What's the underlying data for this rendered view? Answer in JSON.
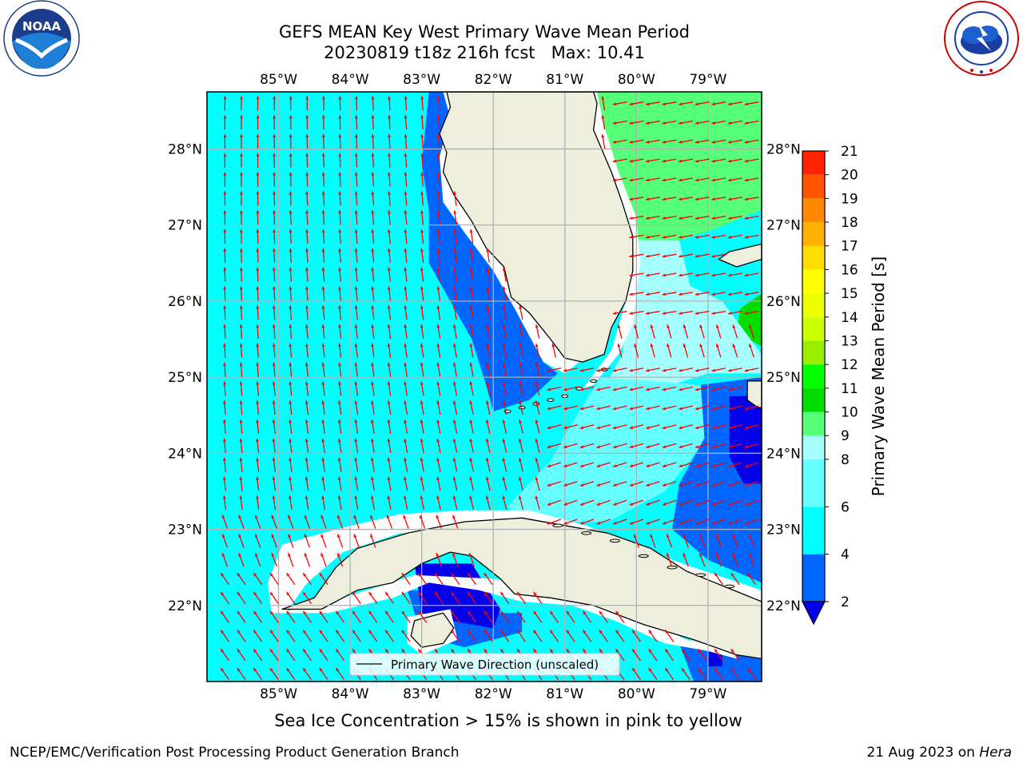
{
  "header": {
    "title_line1": "GEFS MEAN Key West Primary Wave Mean Period",
    "title_line2": "20230819 t18z 216h fcst   Max: 10.41"
  },
  "logos": {
    "noaa": {
      "text": "NOAA",
      "ring_text": "NATIONAL OCEANIC AND ATMOSPHERIC ADMINISTRATION · U.S. DEPARTMENT OF COMMERCE"
    },
    "nws": {
      "ring_text": "NATIONAL WEATHER SERVICE"
    }
  },
  "chart_data": {
    "type": "heatmap",
    "projection": "plate-carree",
    "lon_range": [
      -86.0,
      -78.25
    ],
    "lat_range": [
      21.0,
      28.75
    ],
    "x_ticks": [
      "85°W",
      "84°W",
      "83°W",
      "82°W",
      "81°W",
      "80°W",
      "79°W"
    ],
    "x_tick_values": [
      -85,
      -84,
      -83,
      -82,
      -81,
      -80,
      -79
    ],
    "y_ticks": [
      "28°N",
      "27°N",
      "26°N",
      "25°N",
      "24°N",
      "23°N",
      "22°N"
    ],
    "y_tick_values": [
      28,
      27,
      26,
      25,
      24,
      23,
      22
    ],
    "grid": true,
    "legend": {
      "label": "Primary Wave Direction (unscaled)",
      "position": "bottom-center"
    },
    "colorbar": {
      "label": "Primary Wave Mean Period [s]",
      "ticks": [
        "2",
        "4",
        "6",
        "8",
        "9",
        "10",
        "11",
        "12",
        "13",
        "14",
        "15",
        "16",
        "17",
        "18",
        "19",
        "20",
        "21"
      ],
      "bins": [
        {
          "min": 2,
          "max": 4,
          "color": "#0066ff"
        },
        {
          "min": 4,
          "max": 6,
          "color": "#00ffff"
        },
        {
          "min": 6,
          "max": 8,
          "color": "#66ffff"
        },
        {
          "min": 8,
          "max": 9,
          "color": "#a6ffff"
        },
        {
          "min": 9,
          "max": 10,
          "color": "#55ff77"
        },
        {
          "min": 10,
          "max": 11,
          "color": "#00dd00"
        },
        {
          "min": 11,
          "max": 12,
          "color": "#00ff00"
        },
        {
          "min": 12,
          "max": 13,
          "color": "#99ee00"
        },
        {
          "min": 13,
          "max": 14,
          "color": "#ccff00"
        },
        {
          "min": 14,
          "max": 15,
          "color": "#eeff00"
        },
        {
          "min": 15,
          "max": 16,
          "color": "#ffff00"
        },
        {
          "min": 16,
          "max": 17,
          "color": "#ffdd00"
        },
        {
          "min": 17,
          "max": 18,
          "color": "#ffb000"
        },
        {
          "min": 18,
          "max": 19,
          "color": "#ff8800"
        },
        {
          "min": 19,
          "max": 20,
          "color": "#ff5500"
        },
        {
          "min": 20,
          "max": 21,
          "color": "#ff2200"
        }
      ],
      "under_color": "#0000ee"
    },
    "max_value": 10.41,
    "colors": {
      "land": "#eeeedd",
      "arrow": "#ff0000",
      "grid": "#b0b0b0",
      "ocean_default": "#00ffff"
    }
  },
  "caption": "Sea Ice Concentration > 15% is shown in pink to yellow",
  "footer": {
    "left": "NCEP/EMC/Verification Post Processing Product Generation Branch",
    "right_prefix": "21 Aug 2023 on ",
    "right_host": "Hera"
  }
}
